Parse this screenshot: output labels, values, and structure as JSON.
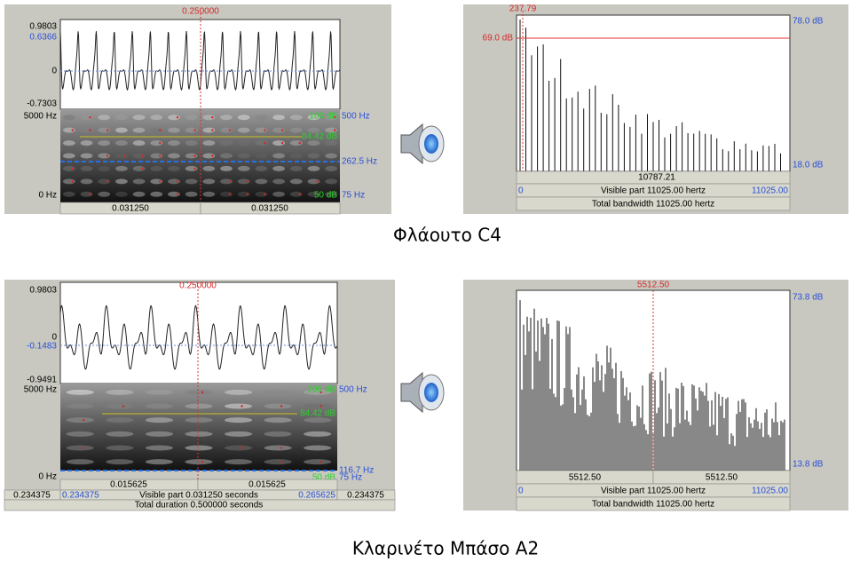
{
  "flute": {
    "editor": {
      "cursor": "0.250000",
      "amp_max": "0.9803",
      "amp_cursor": "0.6366",
      "amp_zero": "0",
      "amp_min": "-0.7303",
      "freq_max": "5000 Hz",
      "freq_min": "0 Hz",
      "db_max": "100 dB",
      "pitch_max": "500 Hz",
      "intensity": "84.42 dB",
      "pitch": "262.5 Hz",
      "db_min": "50 dB",
      "pitch_min": "75 Hz",
      "left_duration": "0.031250",
      "right_duration": "0.031250"
    },
    "spectrum": {
      "cursor_freq": "237.79",
      "cursor_db": "69.0 dB",
      "db_max": "78.0 dB",
      "db_min": "18.0 dB",
      "right_part": "10787.21",
      "freq_min": "0",
      "visible": "Visible part 11025.00 hertz",
      "freq_max": "11025.00",
      "total": "Total bandwidth 11025.00 hertz"
    },
    "caption": "Φλάουτο C4"
  },
  "clarinet": {
    "editor": {
      "cursor": "0.250000",
      "amp_max": "0.9803",
      "amp_zero": "0",
      "amp_cursor": "-0.1483",
      "amp_min": "-0.9491",
      "freq_max": "5000 Hz",
      "freq_min": "0 Hz",
      "db_max": "100 dB",
      "pitch_max": "500 Hz",
      "intensity": "84.42 dB",
      "pitch": "116.7 Hz",
      "db_min": "50 dB",
      "pitch_min": "75 Hz",
      "left_duration": "0.015625",
      "right_duration": "0.015625",
      "before": "0.234375",
      "start": "0.234375",
      "visible": "Visible part 0.031250 seconds",
      "end": "0.265625",
      "after": "0.234375",
      "total": "Total duration 0.500000 seconds"
    },
    "spectrum": {
      "cursor_freq": "5512.50",
      "db_max": "73.8 dB",
      "db_min": "13.8 dB",
      "left_part": "5512.50",
      "right_part": "5512.50",
      "freq_min": "0",
      "visible": "Visible part 11025.00 hertz",
      "freq_max": "11025.00",
      "total": "Total bandwidth 11025.00 hertz"
    },
    "caption": "Κλαρινέτο Μπάσο Α2"
  }
}
